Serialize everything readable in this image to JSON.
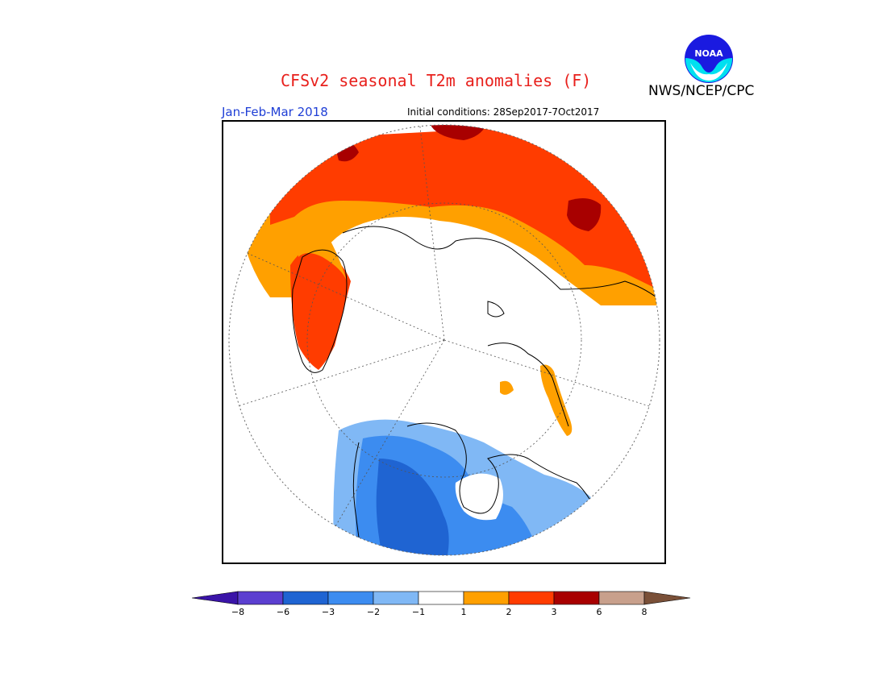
{
  "header": {
    "title": "CFSv2 seasonal T2m anomalies (F)",
    "agency": "NWS/NCEP/CPC",
    "logo_text": "NOAA",
    "period": "Jan-Feb-Mar 2018",
    "initial_conditions": "Initial conditions: 28Sep2017-7Oct2017"
  },
  "map": {
    "projection": "polar-stereographic-north",
    "variable": "T2m anomalies",
    "units": "F"
  },
  "legend": {
    "ticks": [
      "−8",
      "−6",
      "−3",
      "−2",
      "−1",
      "1",
      "2",
      "3",
      "6",
      "8"
    ],
    "colors": [
      "#3a14a8",
      "#5b3fd0",
      "#1f64d2",
      "#3c8cf0",
      "#80b8f5",
      "#ffffff",
      "#ffa000",
      "#ff3c00",
      "#a80000",
      "#c8a08c",
      "#7a5038"
    ]
  }
}
